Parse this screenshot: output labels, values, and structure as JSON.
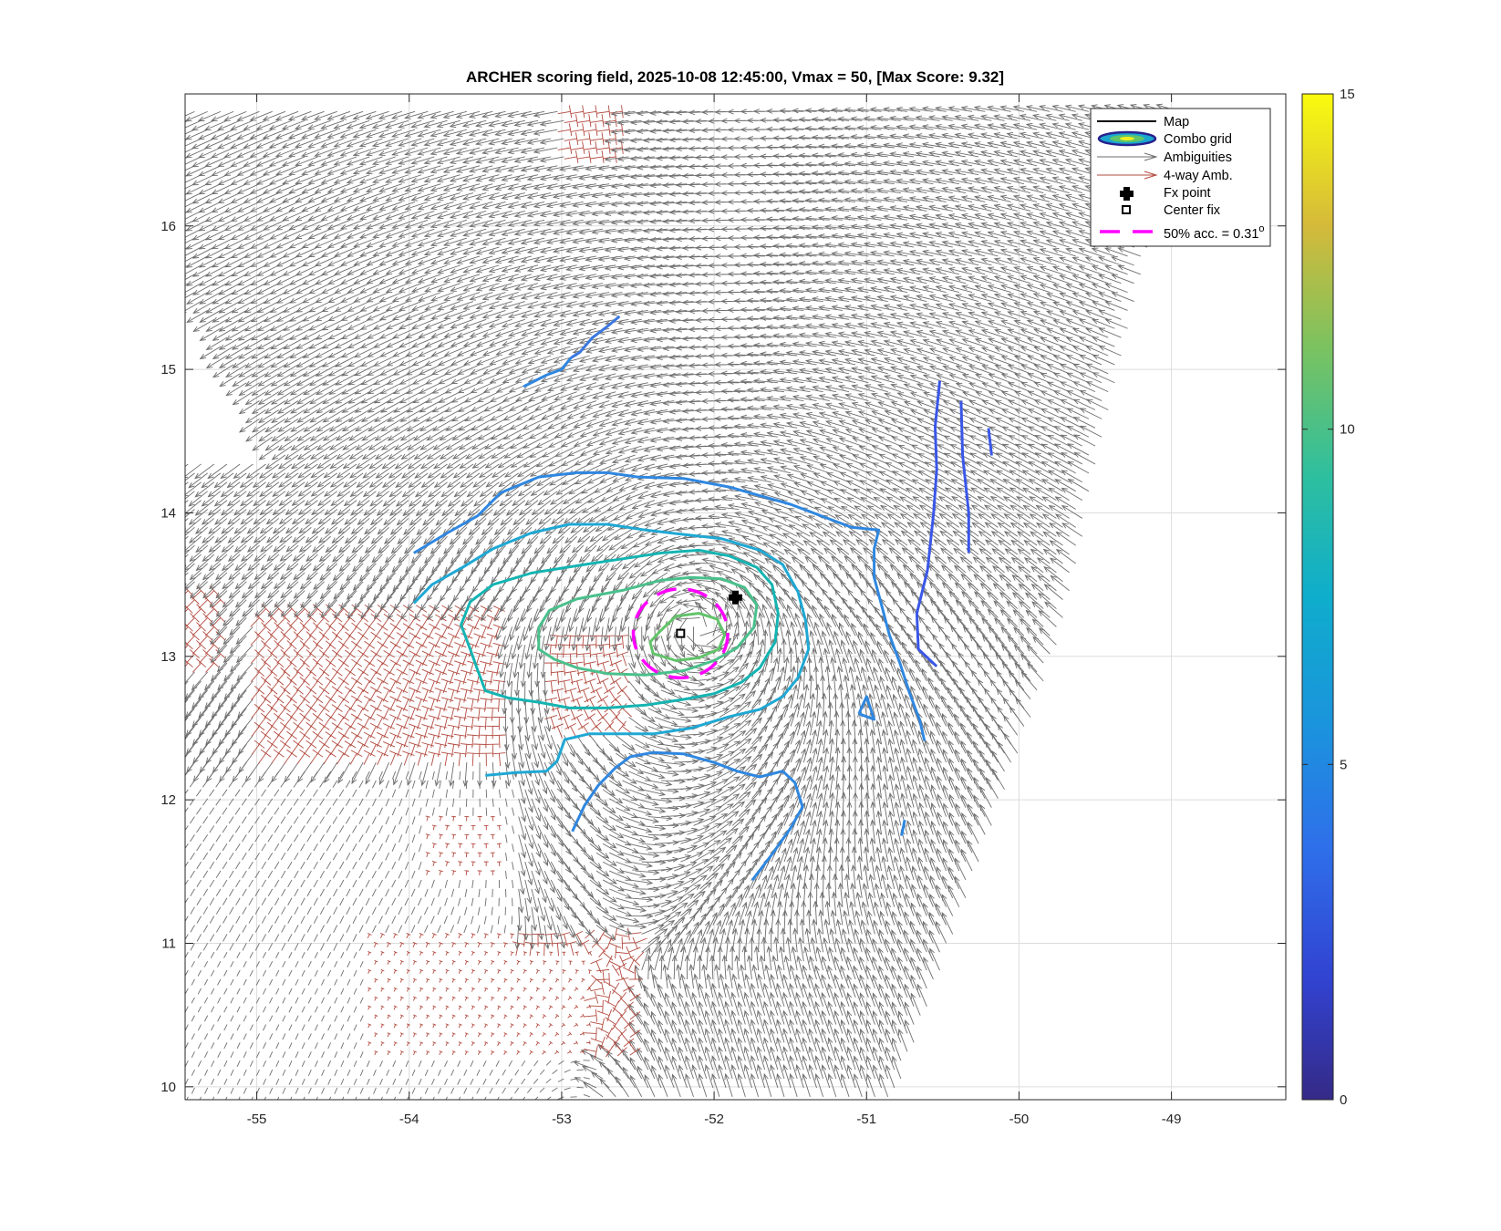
{
  "chart_data": {
    "type": "vector-field-contour",
    "title": "ARCHER scoring field, 2025-10-08 12:45:00, Vmax = 50, [Max Score: 9.32]",
    "xlim": [
      -55.47,
      -48.25
    ],
    "ylim": [
      9.91,
      16.92
    ],
    "xticks": [
      -55,
      -54,
      -53,
      -52,
      -51,
      -50,
      -49
    ],
    "yticks": [
      10,
      11,
      12,
      13,
      14,
      15,
      16
    ],
    "grid": true,
    "legend_position": "top-right",
    "legend": [
      {
        "label": "Map",
        "style": "line"
      },
      {
        "label": "Combo grid",
        "style": "contour"
      },
      {
        "label": "Ambiguities",
        "style": "arrow"
      },
      {
        "label": "4-way Amb.",
        "style": "arrow-red"
      },
      {
        "label": "Fx point",
        "style": "plus-marker"
      },
      {
        "label": "Center fix",
        "style": "square-marker"
      },
      {
        "label": "50% acc. = 0.31",
        "superscript": "o",
        "style": "dashed-magenta"
      }
    ],
    "colorbar": {
      "min": 0,
      "max": 15,
      "ticks": [
        0,
        5,
        10,
        15
      ],
      "colormap": "parula"
    },
    "fx_point": {
      "lon": -51.86,
      "lat": 13.41
    },
    "center_fix": {
      "lon": -52.22,
      "lat": 13.16
    },
    "accuracy_circle_radius_deg": 0.31,
    "circulation_center": {
      "lon": -52.1,
      "lat": 13.2
    },
    "contours": [
      {
        "level": 3.8,
        "color": "#3a57e8",
        "points": [
          [
            -50.52,
            14.92
          ],
          [
            -50.55,
            14.6
          ],
          [
            -50.54,
            14.3
          ],
          [
            -50.56,
            14.0
          ],
          [
            -50.6,
            13.6
          ],
          [
            -50.67,
            13.3
          ],
          [
            -50.66,
            13.05
          ],
          [
            -50.54,
            12.93
          ]
        ]
      },
      {
        "level": 3.8,
        "color": "#3a57e8",
        "points": [
          [
            -50.38,
            14.78
          ],
          [
            -50.37,
            14.4
          ],
          [
            -50.33,
            14.0
          ],
          [
            -50.33,
            13.72
          ]
        ]
      },
      {
        "level": 3.8,
        "color": "#3a57e8",
        "points": [
          [
            -50.2,
            14.59
          ],
          [
            -50.18,
            14.4
          ]
        ]
      },
      {
        "level": 4.8,
        "color": "#2f87e0",
        "points": [
          [
            -53.97,
            13.72
          ],
          [
            -53.75,
            13.86
          ],
          [
            -53.55,
            13.98
          ],
          [
            -53.4,
            14.14
          ],
          [
            -53.15,
            14.25
          ],
          [
            -52.9,
            14.28
          ],
          [
            -52.7,
            14.28
          ],
          [
            -52.5,
            14.25
          ],
          [
            -52.2,
            14.24
          ],
          [
            -51.9,
            14.18
          ],
          [
            -51.7,
            14.12
          ],
          [
            -51.5,
            14.06
          ],
          [
            -51.3,
            13.98
          ],
          [
            -51.1,
            13.9
          ],
          [
            -50.92,
            13.88
          ],
          [
            -50.95,
            13.75
          ],
          [
            -50.95,
            13.55
          ],
          [
            -50.9,
            13.35
          ],
          [
            -50.85,
            13.15
          ],
          [
            -50.78,
            12.95
          ],
          [
            -50.72,
            12.75
          ],
          [
            -50.65,
            12.55
          ],
          [
            -50.62,
            12.41
          ]
        ]
      },
      {
        "level": 4.8,
        "color": "#2f87e0",
        "points": [
          [
            -52.93,
            11.78
          ],
          [
            -52.85,
            11.96
          ],
          [
            -52.76,
            12.1
          ],
          [
            -52.65,
            12.22
          ],
          [
            -52.55,
            12.3
          ],
          [
            -52.4,
            12.33
          ],
          [
            -52.2,
            12.32
          ],
          [
            -52.0,
            12.26
          ],
          [
            -51.85,
            12.2
          ],
          [
            -51.7,
            12.16
          ],
          [
            -51.55,
            12.2
          ],
          [
            -51.47,
            12.12
          ],
          [
            -51.42,
            11.95
          ],
          [
            -51.5,
            11.8
          ],
          [
            -51.62,
            11.62
          ],
          [
            -51.75,
            11.44
          ]
        ]
      },
      {
        "level": 4.8,
        "color": "#2f87e0",
        "points": [
          [
            -51.05,
            12.6
          ],
          [
            -51.0,
            12.72
          ],
          [
            -50.95,
            12.56
          ],
          [
            -51.05,
            12.6
          ]
        ]
      },
      {
        "level": 4.8,
        "color": "#2f87e0",
        "points": [
          [
            -50.75,
            11.86
          ],
          [
            -50.77,
            11.75
          ]
        ]
      },
      {
        "level": 4.8,
        "color": "#2f87e0",
        "points": [
          [
            -52.94,
            15.08
          ],
          [
            -53.0,
            15.0
          ],
          [
            -53.1,
            14.96
          ],
          [
            -53.25,
            14.88
          ]
        ]
      },
      {
        "level": 5.0,
        "color": "#3a78e0",
        "points": [
          [
            -52.62,
            15.37
          ],
          [
            -52.7,
            15.3
          ],
          [
            -52.8,
            15.22
          ],
          [
            -52.88,
            15.12
          ],
          [
            -52.94,
            15.08
          ]
        ]
      },
      {
        "level": 5.8,
        "color": "#1fa8d4",
        "points": [
          [
            -53.97,
            13.37
          ],
          [
            -53.85,
            13.5
          ],
          [
            -53.65,
            13.62
          ],
          [
            -53.45,
            13.75
          ],
          [
            -53.2,
            13.86
          ],
          [
            -52.95,
            13.92
          ],
          [
            -52.7,
            13.92
          ],
          [
            -52.45,
            13.88
          ],
          [
            -52.2,
            13.85
          ],
          [
            -51.95,
            13.82
          ],
          [
            -51.7,
            13.74
          ],
          [
            -51.55,
            13.64
          ],
          [
            -51.45,
            13.45
          ],
          [
            -51.4,
            13.25
          ],
          [
            -51.38,
            13.05
          ],
          [
            -51.45,
            12.85
          ],
          [
            -51.55,
            12.72
          ],
          [
            -51.7,
            12.63
          ],
          [
            -51.9,
            12.58
          ],
          [
            -52.15,
            12.5
          ],
          [
            -52.4,
            12.46
          ],
          [
            -52.62,
            12.46
          ],
          [
            -52.82,
            12.46
          ],
          [
            -52.98,
            12.42
          ],
          [
            -53.03,
            12.27
          ],
          [
            -53.1,
            12.2
          ],
          [
            -53.3,
            12.19
          ],
          [
            -53.5,
            12.17
          ]
        ]
      },
      {
        "level": 6.8,
        "color": "#14b4b2",
        "points": [
          [
            -52.85,
            13.64
          ],
          [
            -52.6,
            13.68
          ],
          [
            -52.35,
            13.72
          ],
          [
            -52.1,
            13.74
          ],
          [
            -51.9,
            13.7
          ],
          [
            -51.72,
            13.62
          ],
          [
            -51.62,
            13.5
          ],
          [
            -51.58,
            13.3
          ],
          [
            -51.6,
            13.1
          ],
          [
            -51.7,
            12.92
          ],
          [
            -51.82,
            12.82
          ],
          [
            -52.0,
            12.74
          ],
          [
            -52.2,
            12.7
          ],
          [
            -52.45,
            12.66
          ],
          [
            -52.7,
            12.64
          ],
          [
            -52.95,
            12.64
          ],
          [
            -53.15,
            12.68
          ],
          [
            -53.35,
            12.71
          ],
          [
            -53.5,
            12.76
          ],
          [
            -53.55,
            12.9
          ],
          [
            -53.6,
            13.05
          ],
          [
            -53.66,
            13.22
          ],
          [
            -53.6,
            13.38
          ],
          [
            -53.45,
            13.5
          ],
          [
            -53.2,
            13.58
          ],
          [
            -52.85,
            13.64
          ]
        ]
      },
      {
        "level": 7.8,
        "color": "#4ac08c",
        "points": [
          [
            -52.35,
            13.53
          ],
          [
            -52.15,
            13.55
          ],
          [
            -51.95,
            13.54
          ],
          [
            -51.8,
            13.48
          ],
          [
            -51.72,
            13.36
          ],
          [
            -51.74,
            13.2
          ],
          [
            -51.85,
            13.06
          ],
          [
            -52.0,
            12.97
          ],
          [
            -52.2,
            12.9
          ],
          [
            -52.45,
            12.87
          ],
          [
            -52.7,
            12.88
          ],
          [
            -52.9,
            12.92
          ],
          [
            -53.05,
            12.98
          ],
          [
            -53.15,
            13.05
          ],
          [
            -53.15,
            13.2
          ],
          [
            -53.08,
            13.32
          ],
          [
            -52.9,
            13.4
          ],
          [
            -52.6,
            13.46
          ],
          [
            -52.35,
            13.53
          ]
        ]
      },
      {
        "level": 8.8,
        "color": "#62c46a",
        "points": [
          [
            -52.35,
            13.18
          ],
          [
            -52.25,
            13.28
          ],
          [
            -52.1,
            13.3
          ],
          [
            -51.98,
            13.26
          ],
          [
            -51.93,
            13.15
          ],
          [
            -51.97,
            13.05
          ],
          [
            -52.1,
            12.99
          ],
          [
            -52.25,
            12.97
          ],
          [
            -52.4,
            13.02
          ],
          [
            -52.42,
            13.1
          ],
          [
            -52.35,
            13.18
          ]
        ]
      }
    ]
  }
}
